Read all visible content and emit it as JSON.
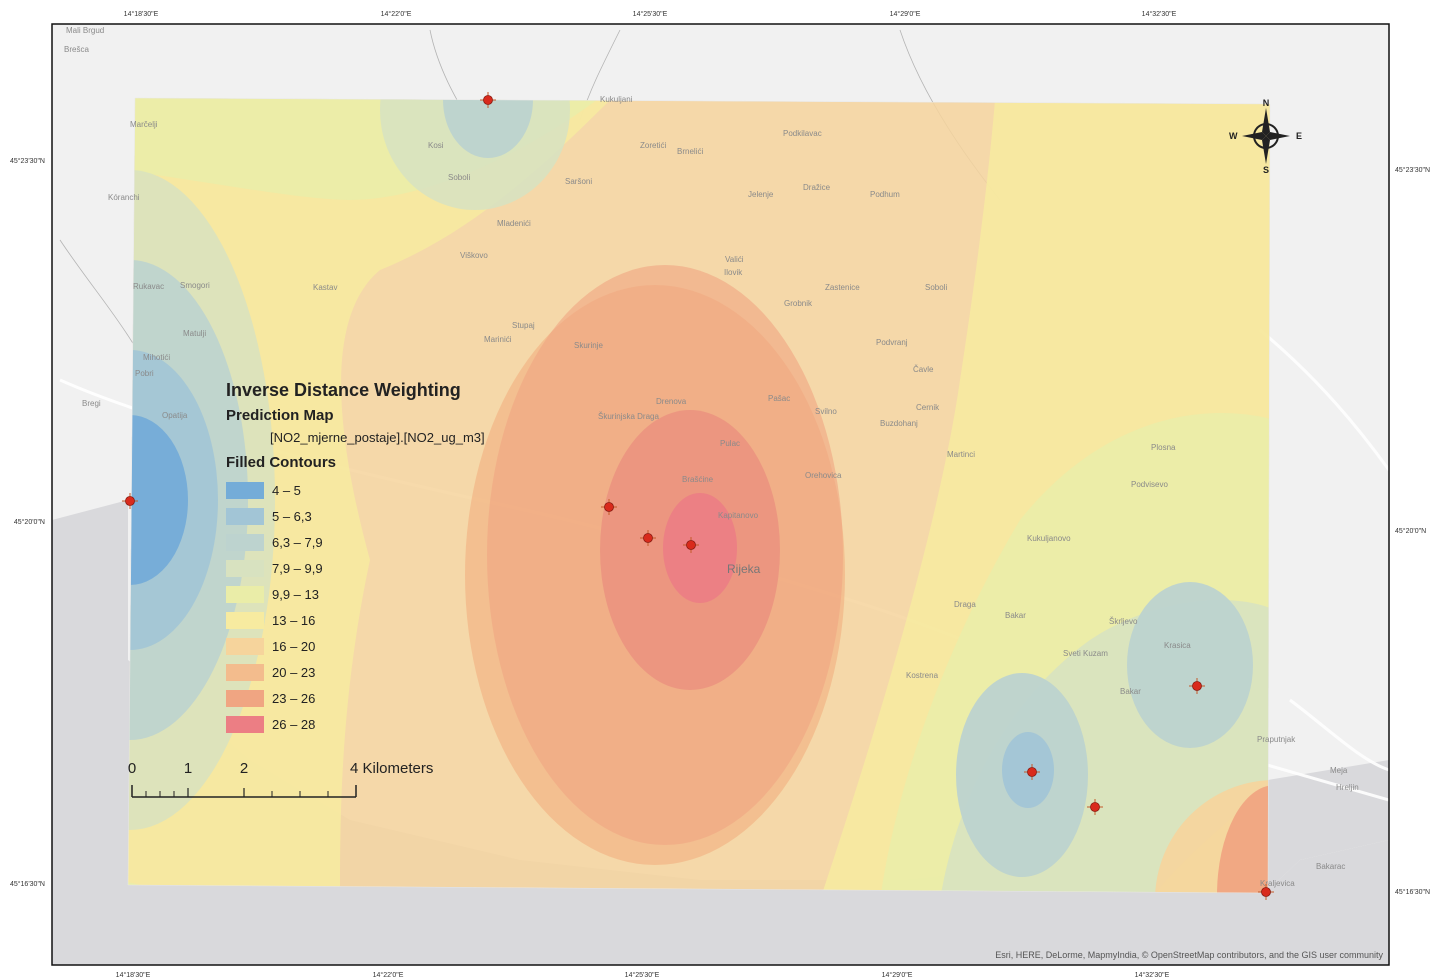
{
  "legend": {
    "title": "Inverse Distance Weighting",
    "subtitle": "Prediction Map",
    "field": "[NO2_mjerne_postaje].[NO2_ug_m3]",
    "contours_title": "Filled Contours",
    "classes": [
      {
        "label": "4 – 5",
        "color": "#74acd8"
      },
      {
        "label": "5 – 6,3",
        "color": "#a2c5d6"
      },
      {
        "label": "6,3 – 7,9",
        "color": "#bdd3cf"
      },
      {
        "label": "7,9 – 9,9",
        "color": "#d8e2c0"
      },
      {
        "label": "9,9 – 13",
        "color": "#eaeda8"
      },
      {
        "label": "13 – 16",
        "color": "#f7eba0"
      },
      {
        "label": "16 – 20",
        "color": "#f6d49c"
      },
      {
        "label": "20 – 23",
        "color": "#f3bc8d"
      },
      {
        "label": "23 – 26",
        "color": "#f0a582"
      },
      {
        "label": "26 – 28",
        "color": "#ec7e84"
      }
    ]
  },
  "scale_bar": {
    "labels": [
      "0",
      "1",
      "2"
    ],
    "end_label": "4 Kilometers"
  },
  "coordinates": {
    "top": [
      "14°18'30\"E",
      "14°22'0\"E",
      "14°25'30\"E",
      "14°29'0\"E",
      "14°32'30\"E"
    ],
    "bottom": [
      "14°18'30\"E",
      "14°22'0\"E",
      "14°25'30\"E",
      "14°29'0\"E",
      "14°32'30\"E"
    ],
    "left": [
      "45°23'30\"N",
      "45°20'0\"N",
      "45°16'30\"N"
    ],
    "right": [
      "45°23'30\"N",
      "45°20'0\"N",
      "45°16'30\"N"
    ]
  },
  "compass": {
    "n": "N",
    "s": "S",
    "e": "E",
    "w": "W"
  },
  "places": [
    "Mali Brgud",
    "Brešca",
    "Marčelji",
    "Kukuljani",
    "Podkilavac",
    "Zoretići",
    "Brnelići",
    "Kosi",
    "Saršoni",
    "Soboli",
    "Jelenje",
    "Dražice",
    "Podhum",
    "Kóranchi",
    "Mladenići",
    "Viškovo",
    "Valići",
    "Ilovik",
    "Zastenice",
    "Soboli",
    "Smogori",
    "Kastav",
    "Grobnik",
    "Rukavac",
    "Stupaj",
    "Marinići",
    "Skurinje",
    "Podvranj",
    "Matulji",
    "Mihotići",
    "Pobri",
    "Opatija",
    "Drenova",
    "Pašac",
    "Čavle",
    "Bregi",
    "Škurinjska Draga",
    "Svilno",
    "Cernik",
    "Buzdohanj",
    "Pulac",
    "Brašćine",
    "Orehovica",
    "Martinci",
    "Plosna",
    "Podvisevo",
    "Kapitanovo",
    "Rijeka",
    "Kukuljanovo",
    "Draga",
    "Škrljevo",
    "Krasica",
    "Sveti Kuzam",
    "Kostrena",
    "Bakar",
    "Praputnjak",
    "Meja",
    "Hreljin",
    "Bakarac",
    "Kraljevica",
    "Bakar"
  ],
  "attribution": "Esri, HERE, DeLorme, MapmyIndia, © OpenStreetMap contributors, and the GIS user community"
}
